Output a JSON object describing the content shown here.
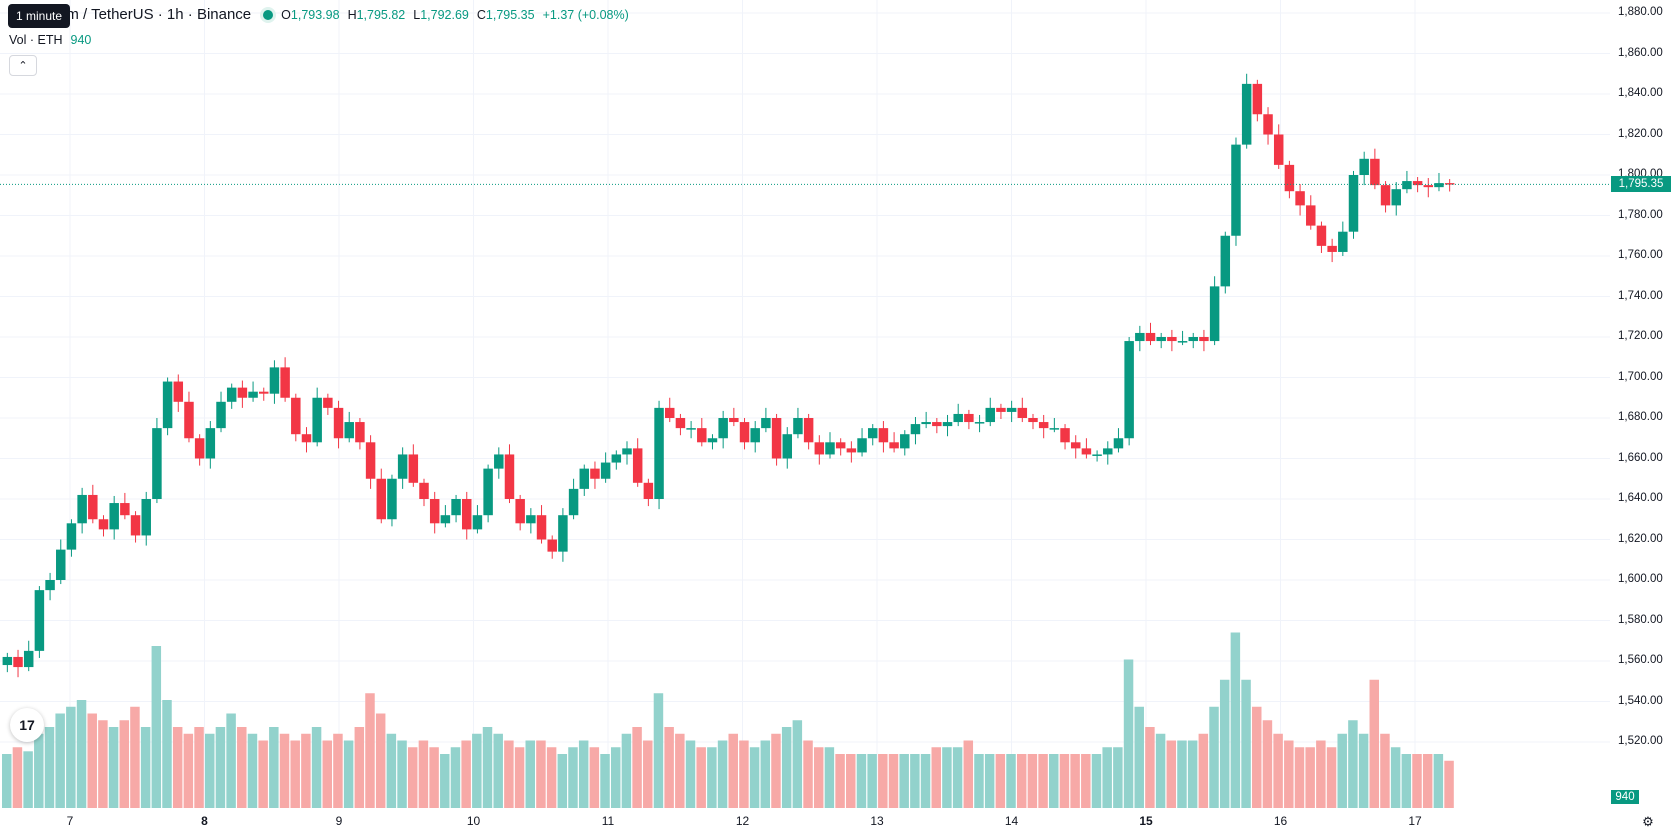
{
  "legend": {
    "title": "um / TetherUS · 1h · Binance",
    "o_label": "O",
    "o_value": "1,793.98",
    "h_label": "H",
    "h_value": "1,795.82",
    "l_label": "L",
    "l_value": "1,792.69",
    "c_label": "C",
    "c_value": "1,795.35",
    "change": "+1.37 (+0.08%)",
    "vol_label": "Vol · ETH",
    "vol_value": "940"
  },
  "tooltip": "1 minute",
  "collapse_icon": "chevron-up-icon",
  "logo_text": "17",
  "colors": {
    "up": "#089981",
    "down": "#f23645",
    "vol_up": "#92d2cc",
    "vol_down": "#f7a9a7",
    "grid": "#f0f3fa"
  },
  "chart_data": {
    "type": "candlestick",
    "symbol": "um / TetherUS",
    "interval": "1h",
    "exchange": "Binance",
    "ylim": [
      1605,
      1880
    ],
    "price_ticks": [
      "1,880.00",
      "1,860.00",
      "1,840.00",
      "1,820.00",
      "1,800.00",
      "1,780.00",
      "1,760.00",
      "1,740.00",
      "1,720.00",
      "1,700.00",
      "1,680.00",
      "1,660.00",
      "1,640.00",
      "1,620.00",
      "1,600.00",
      "1,580.00",
      "1,560.00",
      "1,540.00",
      "1,520.00"
    ],
    "x_ticks": [
      {
        "label": "7",
        "bold": false
      },
      {
        "label": "8",
        "bold": true
      },
      {
        "label": "9",
        "bold": false
      },
      {
        "label": "10",
        "bold": false
      },
      {
        "label": "11",
        "bold": false
      },
      {
        "label": "12",
        "bold": false
      },
      {
        "label": "13",
        "bold": false
      },
      {
        "label": "14",
        "bold": false
      },
      {
        "label": "15",
        "bold": true
      },
      {
        "label": "16",
        "bold": false
      },
      {
        "label": "17",
        "bold": false
      }
    ],
    "current_price_label": "1,795.35",
    "current_price": 1795.35,
    "current_volume_label": "940",
    "segments": [
      {
        "c": 1562,
        "v": 40
      },
      {
        "c": 1557,
        "v": 45
      },
      {
        "c": 1565,
        "v": 42
      },
      {
        "c": 1595,
        "v": 55
      },
      {
        "c": 1600,
        "v": 60
      },
      {
        "c": 1615,
        "v": 70
      },
      {
        "c": 1628,
        "v": 75
      },
      {
        "c": 1642,
        "v": 80
      },
      {
        "c": 1630,
        "v": 70
      },
      {
        "c": 1625,
        "v": 65
      },
      {
        "c": 1638,
        "v": 60
      },
      {
        "c": 1632,
        "v": 65
      },
      {
        "c": 1622,
        "v": 75
      },
      {
        "c": 1640,
        "v": 60
      },
      {
        "c": 1675,
        "v": 120
      },
      {
        "c": 1698,
        "v": 80
      },
      {
        "c": 1688,
        "v": 60
      },
      {
        "c": 1670,
        "v": 55
      },
      {
        "c": 1660,
        "v": 60
      },
      {
        "c": 1675,
        "v": 55
      },
      {
        "c": 1688,
        "v": 60
      },
      {
        "c": 1695,
        "v": 70
      },
      {
        "c": 1690,
        "v": 60
      },
      {
        "c": 1693,
        "v": 55
      },
      {
        "c": 1692,
        "v": 50
      },
      {
        "c": 1705,
        "v": 60
      },
      {
        "c": 1690,
        "v": 55
      },
      {
        "c": 1672,
        "v": 50
      },
      {
        "c": 1668,
        "v": 55
      },
      {
        "c": 1690,
        "v": 60
      },
      {
        "c": 1685,
        "v": 50
      },
      {
        "c": 1670,
        "v": 55
      },
      {
        "c": 1678,
        "v": 50
      },
      {
        "c": 1668,
        "v": 60
      },
      {
        "c": 1650,
        "v": 85
      },
      {
        "c": 1630,
        "v": 70
      },
      {
        "c": 1650,
        "v": 55
      },
      {
        "c": 1662,
        "v": 50
      },
      {
        "c": 1648,
        "v": 45
      },
      {
        "c": 1640,
        "v": 50
      },
      {
        "c": 1628,
        "v": 45
      },
      {
        "c": 1632,
        "v": 40
      },
      {
        "c": 1640,
        "v": 45
      },
      {
        "c": 1625,
        "v": 50
      },
      {
        "c": 1632,
        "v": 55
      },
      {
        "c": 1655,
        "v": 60
      },
      {
        "c": 1662,
        "v": 55
      },
      {
        "c": 1640,
        "v": 50
      },
      {
        "c": 1628,
        "v": 45
      },
      {
        "c": 1632,
        "v": 50
      },
      {
        "c": 1620,
        "v": 50
      },
      {
        "c": 1614,
        "v": 45
      },
      {
        "c": 1632,
        "v": 40
      },
      {
        "c": 1645,
        "v": 45
      },
      {
        "c": 1655,
        "v": 50
      },
      {
        "c": 1650,
        "v": 45
      },
      {
        "c": 1658,
        "v": 40
      },
      {
        "c": 1662,
        "v": 45
      },
      {
        "c": 1665,
        "v": 55
      },
      {
        "c": 1648,
        "v": 60
      },
      {
        "c": 1640,
        "v": 50
      },
      {
        "c": 1685,
        "v": 85
      },
      {
        "c": 1680,
        "v": 60
      },
      {
        "c": 1675,
        "v": 55
      },
      {
        "c": 1675,
        "v": 50
      },
      {
        "c": 1668,
        "v": 45
      },
      {
        "c": 1670,
        "v": 45
      },
      {
        "c": 1680,
        "v": 50
      },
      {
        "c": 1678,
        "v": 55
      },
      {
        "c": 1668,
        "v": 50
      },
      {
        "c": 1675,
        "v": 45
      },
      {
        "c": 1680,
        "v": 50
      },
      {
        "c": 1660,
        "v": 55
      },
      {
        "c": 1672,
        "v": 60
      },
      {
        "c": 1680,
        "v": 65
      },
      {
        "c": 1668,
        "v": 50
      },
      {
        "c": 1662,
        "v": 45
      },
      {
        "c": 1668,
        "v": 45
      },
      {
        "c": 1665,
        "v": 40
      },
      {
        "c": 1663,
        "v": 40
      },
      {
        "c": 1670,
        "v": 40
      },
      {
        "c": 1675,
        "v": 40
      },
      {
        "c": 1668,
        "v": 40
      },
      {
        "c": 1665,
        "v": 40
      },
      {
        "c": 1672,
        "v": 40
      },
      {
        "c": 1677,
        "v": 40
      },
      {
        "c": 1678,
        "v": 40
      },
      {
        "c": 1676,
        "v": 45
      },
      {
        "c": 1678,
        "v": 45
      },
      {
        "c": 1682,
        "v": 45
      },
      {
        "c": 1678,
        "v": 50
      },
      {
        "c": 1678,
        "v": 40
      },
      {
        "c": 1685,
        "v": 40
      },
      {
        "c": 1683,
        "v": 40
      },
      {
        "c": 1685,
        "v": 40
      },
      {
        "c": 1680,
        "v": 40
      },
      {
        "c": 1678,
        "v": 40
      },
      {
        "c": 1675,
        "v": 40
      },
      {
        "c": 1675,
        "v": 40
      },
      {
        "c": 1668,
        "v": 40
      },
      {
        "c": 1665,
        "v": 40
      },
      {
        "c": 1662,
        "v": 40
      },
      {
        "c": 1662,
        "v": 40
      },
      {
        "c": 1665,
        "v": 45
      },
      {
        "c": 1670,
        "v": 45
      },
      {
        "c": 1718,
        "v": 110
      },
      {
        "c": 1722,
        "v": 75
      },
      {
        "c": 1718,
        "v": 60
      },
      {
        "c": 1720,
        "v": 55
      },
      {
        "c": 1718,
        "v": 50
      },
      {
        "c": 1718,
        "v": 50
      },
      {
        "c": 1720,
        "v": 50
      },
      {
        "c": 1718,
        "v": 55
      },
      {
        "c": 1745,
        "v": 75
      },
      {
        "c": 1770,
        "v": 95
      },
      {
        "c": 1815,
        "v": 130
      },
      {
        "c": 1845,
        "v": 95
      },
      {
        "c": 1830,
        "v": 75
      },
      {
        "c": 1820,
        "v": 65
      },
      {
        "c": 1805,
        "v": 55
      },
      {
        "c": 1792,
        "v": 50
      },
      {
        "c": 1785,
        "v": 45
      },
      {
        "c": 1775,
        "v": 45
      },
      {
        "c": 1765,
        "v": 50
      },
      {
        "c": 1762,
        "v": 45
      },
      {
        "c": 1772,
        "v": 55
      },
      {
        "c": 1800,
        "v": 65
      },
      {
        "c": 1808,
        "v": 55
      },
      {
        "c": 1795,
        "v": 95
      },
      {
        "c": 1785,
        "v": 55
      },
      {
        "c": 1793,
        "v": 45
      },
      {
        "c": 1797,
        "v": 40
      },
      {
        "c": 1795,
        "v": 40
      },
      {
        "c": 1794,
        "v": 40
      },
      {
        "c": 1796,
        "v": 40
      },
      {
        "c": 1795.35,
        "v": 35
      }
    ]
  }
}
